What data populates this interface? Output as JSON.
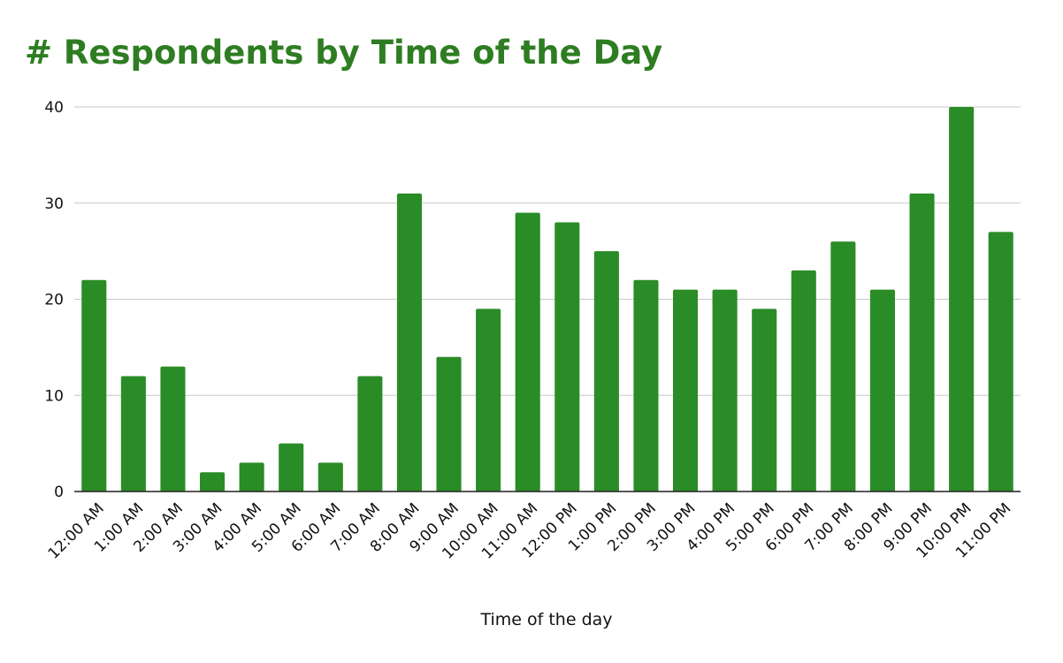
{
  "chart_data": {
    "type": "bar",
    "title": "# Respondents by Time of the Day",
    "xlabel": "Time of the day",
    "ylabel": "",
    "ylim": [
      0,
      40
    ],
    "yticks": [
      0,
      10,
      20,
      30,
      40
    ],
    "grid": true,
    "bar_color": "#2a8c26",
    "title_color": "#2e7d22",
    "categories": [
      "12:00 AM",
      "1:00 AM",
      "2:00 AM",
      "3:00 AM",
      "4:00 AM",
      "5:00 AM",
      "6:00 AM",
      "7:00 AM",
      "8:00 AM",
      "9:00 AM",
      "10:00 AM",
      "11:00 AM",
      "12:00 PM",
      "1:00 PM",
      "2:00 PM",
      "3:00 PM",
      "4:00 PM",
      "5:00 PM",
      "6:00 PM",
      "7:00 PM",
      "8:00 PM",
      "9:00 PM",
      "10:00 PM",
      "11:00 PM"
    ],
    "values": [
      22,
      12,
      13,
      2,
      3,
      5,
      3,
      12,
      31,
      14,
      19,
      29,
      28,
      25,
      22,
      21,
      21,
      19,
      23,
      26,
      21,
      31,
      40,
      27
    ]
  }
}
